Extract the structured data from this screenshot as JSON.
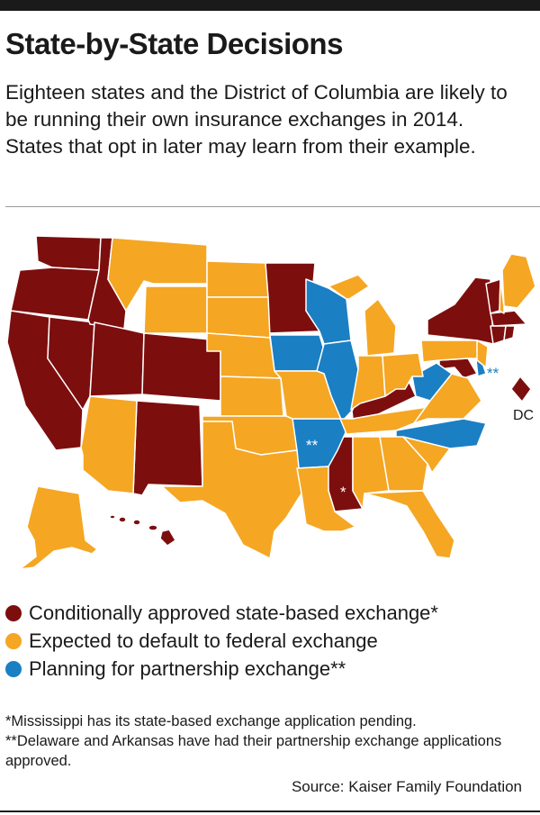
{
  "headline": "State-by-State Decisions",
  "dek": "Eighteen states and the District of Columbia are likely to be running their own insurance exchanges in 2014. States that opt in later may learn from their example.",
  "colors": {
    "state_based": "#7d0e0e",
    "federal": "#f5a623",
    "partnership": "#1b7fc4",
    "border": "#ffffff"
  },
  "map_labels": {
    "dc": "DC",
    "mississippi_mark": "*",
    "arkansas_mark": "**",
    "delaware_mark": "**"
  },
  "legend": [
    {
      "label": "Conditionally approved state-based exchange*",
      "color": "#7d0e0e"
    },
    {
      "label": "Expected to default to federal exchange",
      "color": "#f5a623"
    },
    {
      "label": "Planning for partnership exchange**",
      "color": "#1b7fc4"
    }
  ],
  "notes": [
    "*Mississippi has its state-based exchange application pending.",
    "**Delaware and Arkansas have had their partnership exchange applications approved."
  ],
  "source": "Source: Kaiser Family Foundation"
}
